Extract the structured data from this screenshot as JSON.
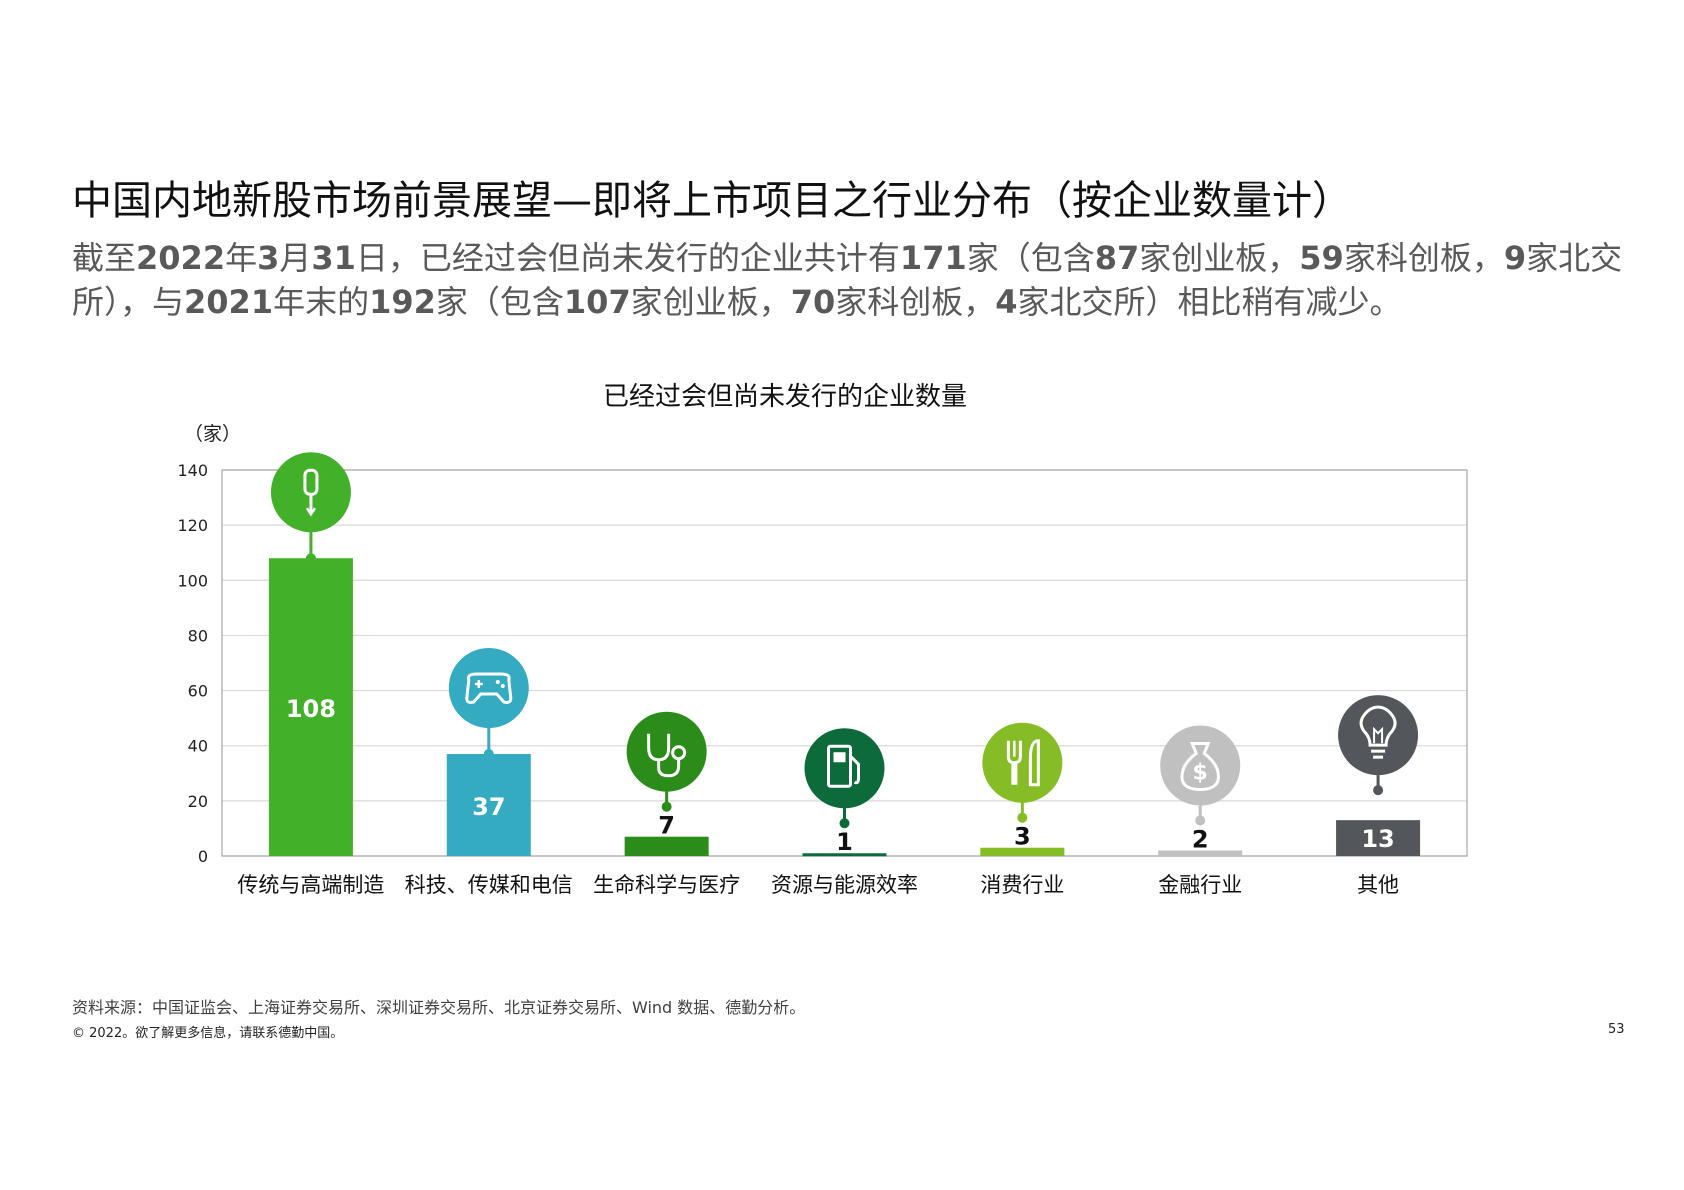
{
  "page": {
    "title": "中国内地新股市场前景展望—即将上市项目之行业分布（按企业数量计）",
    "subtitle_parts": [
      {
        "text": "截至",
        "bold": false
      },
      {
        "text": "2022",
        "bold": true
      },
      {
        "text": "年",
        "bold": false
      },
      {
        "text": "3",
        "bold": true
      },
      {
        "text": "月",
        "bold": false
      },
      {
        "text": "31",
        "bold": true
      },
      {
        "text": "日，已经过会但尚未发行的企业共计有",
        "bold": false
      },
      {
        "text": "171",
        "bold": true
      },
      {
        "text": "家（包含",
        "bold": false
      },
      {
        "text": "87",
        "bold": true
      },
      {
        "text": "家创业板，",
        "bold": false
      },
      {
        "text": "59",
        "bold": true
      },
      {
        "text": "家科创板，",
        "bold": false
      },
      {
        "text": "9",
        "bold": true
      },
      {
        "text": "家北交所），与",
        "bold": false
      },
      {
        "text": "2021",
        "bold": true
      },
      {
        "text": "年末的",
        "bold": false
      },
      {
        "text": "192",
        "bold": true
      },
      {
        "text": "家（包含",
        "bold": false
      },
      {
        "text": "107",
        "bold": true
      },
      {
        "text": "家创业板，",
        "bold": false
      },
      {
        "text": "70",
        "bold": true
      },
      {
        "text": "家科创板，",
        "bold": false
      },
      {
        "text": "4",
        "bold": true
      },
      {
        "text": "家北交所）相比稍有减少。",
        "bold": false
      }
    ],
    "source": "资料来源：中国证监会、上海证券交易所、深圳证券交易所、北京证券交易所、Wind 数据、德勤分析。",
    "copyright": "© 2022。欲了解更多信息，请联系德勤中国。",
    "page_number": "53"
  },
  "chart_data": {
    "type": "bar",
    "title": "已经过会但尚未发行的企业数量",
    "ylabel": "（家）",
    "xlabel": "",
    "ylim": [
      0,
      140
    ],
    "yticks": [
      0,
      20,
      40,
      60,
      80,
      100,
      120,
      140
    ],
    "grid": true,
    "legend": "none",
    "categories": [
      "传统与高端制造",
      "科技、传媒和电信",
      "生命科学与医疗",
      "资源与能源效率",
      "消费行业",
      "金融行业",
      "其他"
    ],
    "values": [
      108,
      37,
      7,
      1,
      3,
      2,
      13
    ],
    "labels": [
      "108",
      "37",
      "7",
      "1",
      "3",
      "2",
      "13"
    ],
    "colors": [
      "#43b02a",
      "#34abc0",
      "#2c8c1a",
      "#0d6a3a",
      "#86bc25",
      "#c0c0c0",
      "#53565a"
    ],
    "icons": [
      "screwdriver-icon",
      "gamepad-icon",
      "stethoscope-icon",
      "fuel-pump-icon",
      "fork-knife-icon",
      "money-bag-icon",
      "lightbulb-icon"
    ]
  }
}
